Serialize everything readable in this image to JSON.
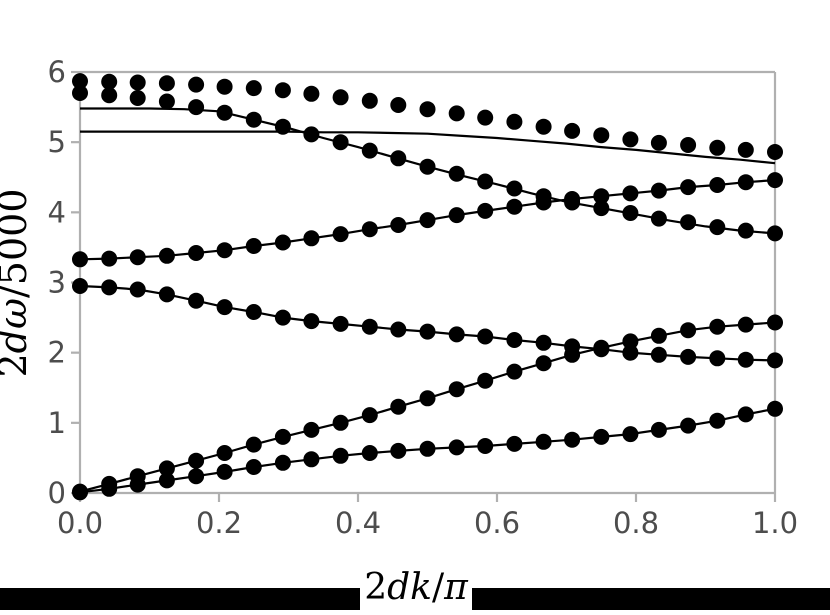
{
  "figure": {
    "background": "#ffffff",
    "bottom_bar_color": "#000000",
    "xlabel_box_color": "#ffffff"
  },
  "style": {
    "axis_color": "#b0b0b0",
    "tick_label_color": "#4d4d4d",
    "data_color": "#000000",
    "line_width": 2.2,
    "marker_radius": 8
  },
  "chart_data": {
    "type": "line",
    "title": "",
    "xlabel": "2dk/π",
    "ylabel": "2dω/5000",
    "xlabel_parts": {
      "prefix": "2",
      "letters": "dk",
      "slash": "/",
      "symbol": "π"
    },
    "ylabel_parts": {
      "prefix": "2",
      "letters": "dω",
      "slash": "/",
      "denom": "5000"
    },
    "xlim": [
      0,
      1
    ],
    "ylim": [
      0,
      6
    ],
    "grid": false,
    "legend": null,
    "x_ticks": [
      0,
      0.2,
      0.4,
      0.6,
      0.8,
      1.0
    ],
    "x_tick_labels": [
      "0.0",
      "0.2",
      "0.4",
      "0.6",
      "0.8",
      "1.0"
    ],
    "y_ticks": [
      0,
      1,
      2,
      3,
      4,
      5,
      6
    ],
    "y_tick_labels": [
      "0",
      "1",
      "2",
      "3",
      "4",
      "5",
      "6"
    ],
    "x": [
      0,
      0.042,
      0.083,
      0.125,
      0.167,
      0.208,
      0.25,
      0.292,
      0.333,
      0.375,
      0.417,
      0.458,
      0.5,
      0.542,
      0.583,
      0.625,
      0.667,
      0.708,
      0.75,
      0.792,
      0.833,
      0.875,
      0.917,
      0.958,
      1
    ],
    "series": [
      {
        "name": "acoustic-branch-1-data",
        "marker": "circle",
        "line": true,
        "values": [
          0.01,
          0.06,
          0.12,
          0.18,
          0.24,
          0.3,
          0.37,
          0.43,
          0.48,
          0.53,
          0.57,
          0.6,
          0.63,
          0.65,
          0.67,
          0.7,
          0.73,
          0.76,
          0.8,
          0.84,
          0.9,
          0.96,
          1.03,
          1.12,
          1.2
        ]
      },
      {
        "name": "acoustic-branch-2-data",
        "marker": "circle",
        "line": true,
        "values": [
          0.02,
          0.13,
          0.24,
          0.35,
          0.46,
          0.57,
          0.69,
          0.8,
          0.9,
          1.0,
          1.11,
          1.23,
          1.35,
          1.48,
          1.6,
          1.73,
          1.85,
          1.97,
          2.07,
          2.16,
          2.24,
          2.32,
          2.37,
          2.4,
          2.43
        ]
      },
      {
        "name": "optical-branch-1-data",
        "marker": "circle",
        "line": true,
        "values": [
          2.95,
          2.93,
          2.9,
          2.83,
          2.74,
          2.65,
          2.58,
          2.5,
          2.45,
          2.41,
          2.37,
          2.33,
          2.3,
          2.26,
          2.23,
          2.18,
          2.14,
          2.09,
          2.05,
          2.0,
          1.97,
          1.94,
          1.92,
          1.9,
          1.89
        ]
      },
      {
        "name": "optical-branch-2-data",
        "marker": "circle",
        "line": true,
        "values": [
          3.33,
          3.34,
          3.36,
          3.38,
          3.42,
          3.46,
          3.52,
          3.57,
          3.63,
          3.69,
          3.76,
          3.82,
          3.89,
          3.96,
          4.02,
          4.08,
          4.14,
          4.19,
          4.23,
          4.27,
          4.31,
          4.36,
          4.39,
          4.43,
          4.46
        ]
      },
      {
        "name": "optical-branch-3-data",
        "marker": "circle",
        "line": false,
        "values": [
          5.7,
          5.67,
          5.63,
          5.58,
          5.5,
          5.42,
          5.32,
          5.22,
          5.11,
          5.0,
          4.88,
          4.77,
          4.65,
          4.55,
          4.44,
          4.34,
          4.23,
          4.14,
          4.06,
          3.99,
          3.91,
          3.86,
          3.79,
          3.74,
          3.7
        ]
      },
      {
        "name": "optical-branch-4-data",
        "marker": "circle",
        "line": false,
        "values": [
          5.87,
          5.86,
          5.85,
          5.84,
          5.82,
          5.79,
          5.77,
          5.74,
          5.69,
          5.64,
          5.59,
          5.53,
          5.47,
          5.41,
          5.35,
          5.29,
          5.22,
          5.16,
          5.1,
          5.04,
          4.99,
          4.96,
          4.92,
          4.89,
          4.86
        ]
      },
      {
        "name": "theory-line-branch-5",
        "marker": "none",
        "line": true,
        "x": [
          0,
          0.05,
          0.1,
          0.15,
          0.2,
          0.25,
          0.3,
          0.35,
          0.4,
          0.45,
          0.5,
          0.55,
          0.6,
          0.65,
          0.7,
          0.75,
          0.8,
          0.85,
          0.9,
          0.95,
          1
        ],
        "values": [
          5.48,
          5.48,
          5.48,
          5.47,
          5.44,
          5.32,
          5.2,
          5.06,
          4.93,
          4.79,
          4.65,
          4.52,
          4.4,
          4.27,
          4.15,
          4.06,
          3.97,
          3.88,
          3.8,
          3.74,
          3.7
        ]
      },
      {
        "name": "theory-line-branch-6",
        "marker": "none",
        "line": true,
        "x": [
          0,
          0.05,
          0.1,
          0.15,
          0.2,
          0.25,
          0.3,
          0.35,
          0.4,
          0.45,
          0.5,
          0.55,
          0.6,
          0.65,
          0.7,
          0.75,
          0.8,
          0.85,
          0.9,
          0.95,
          1
        ],
        "values": [
          5.15,
          5.15,
          5.15,
          5.15,
          5.15,
          5.15,
          5.15,
          5.14,
          5.14,
          5.13,
          5.12,
          5.09,
          5.06,
          5.02,
          4.98,
          4.93,
          4.89,
          4.84,
          4.79,
          4.75,
          4.7
        ]
      }
    ]
  }
}
